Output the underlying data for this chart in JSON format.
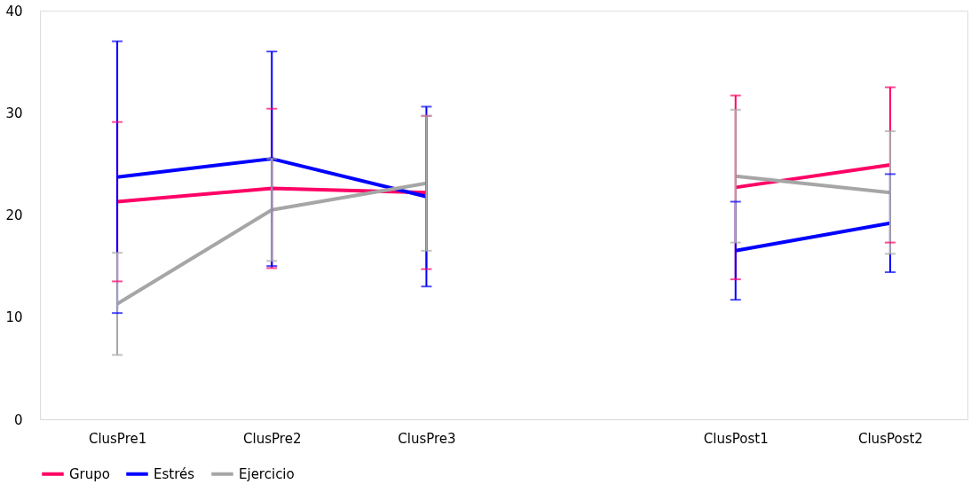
{
  "chart_data": {
    "type": "line",
    "categories": [
      "ClusPre1",
      "ClusPre2",
      "ClusPre3",
      null,
      "ClusPost1",
      "ClusPost2"
    ],
    "series": [
      {
        "name": "Grupo",
        "color": "#ff0066",
        "values": [
          21.3,
          22.6,
          22.2,
          null,
          22.7,
          24.9
        ],
        "errors": [
          7.8,
          7.8,
          7.5,
          null,
          9,
          7.6
        ]
      },
      {
        "name": "Estrés",
        "color": "#0000ff",
        "values": [
          23.7,
          25.5,
          21.8,
          null,
          16.5,
          19.2
        ],
        "errors": [
          13.3,
          10.5,
          8.8,
          null,
          4.8,
          4.8
        ]
      },
      {
        "name": "Ejercicio",
        "color": "#a6a6a6",
        "values": [
          11.3,
          20.5,
          23.1,
          null,
          23.8,
          22.2
        ],
        "errors": [
          5,
          5,
          6.6,
          null,
          6.5,
          6
        ]
      }
    ],
    "ylim": [
      0,
      40
    ],
    "yticks": [
      0,
      10,
      20,
      30,
      40
    ],
    "grid": false,
    "legend": "bottom",
    "marker": "none",
    "line_style": "solid"
  }
}
